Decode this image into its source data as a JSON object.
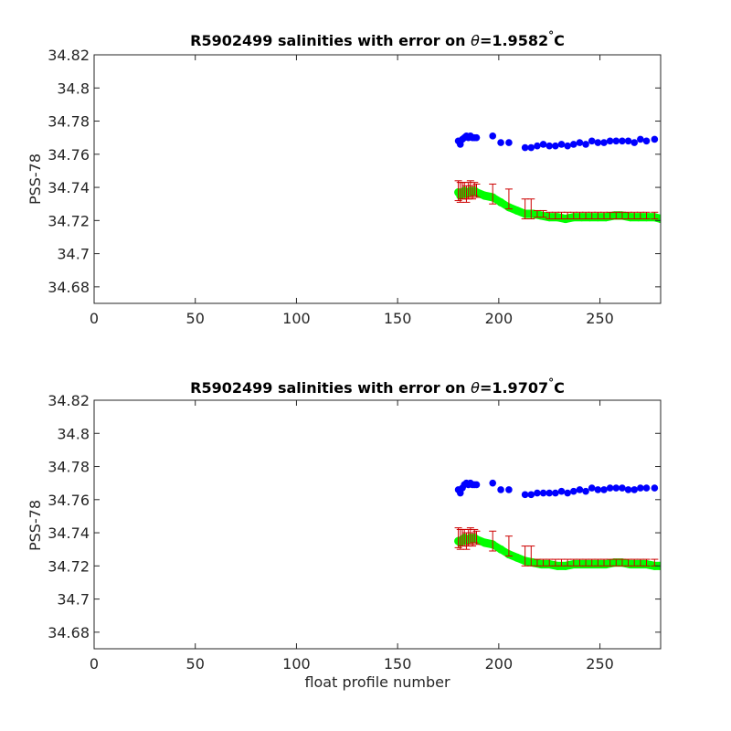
{
  "chart_data": [
    {
      "type": "scatter",
      "title": {
        "prefix": "R5902499 salinities with error on ",
        "symbol": "θ",
        "value": "=1.9582",
        "degree": "°",
        "unit": "C"
      },
      "xlabel": "",
      "ylabel": "PSS-78",
      "xlim": [
        0,
        280
      ],
      "ylim": [
        34.67,
        34.82
      ],
      "xticks": [
        "0",
        "50",
        "100",
        "150",
        "200",
        "250"
      ],
      "yticks": [
        "34.68",
        "34.7",
        "34.72",
        "34.74",
        "34.76",
        "34.78",
        "34.8",
        "34.82"
      ],
      "grid": false,
      "series": [
        {
          "kind": "markers",
          "color": "#0000ff",
          "x": [
            180,
            181,
            182,
            183,
            184,
            185,
            186,
            187,
            188,
            189,
            197,
            201,
            205,
            213,
            216,
            219,
            222,
            225,
            228,
            231,
            234,
            237,
            240,
            243,
            246,
            249,
            252,
            255,
            258,
            261,
            264,
            267,
            270,
            273,
            277
          ],
          "y": [
            34.768,
            34.766,
            34.769,
            34.77,
            34.771,
            34.77,
            34.771,
            34.77,
            34.77,
            34.77,
            34.771,
            34.767,
            34.767,
            34.764,
            34.764,
            34.765,
            34.766,
            34.765,
            34.765,
            34.766,
            34.765,
            34.766,
            34.767,
            34.766,
            34.768,
            34.767,
            34.767,
            34.768,
            34.768,
            34.768,
            34.768,
            34.767,
            34.769,
            34.768,
            34.769
          ]
        },
        {
          "kind": "band",
          "color": "#00ff00",
          "x": [
            180,
            181,
            182,
            183,
            184,
            185,
            186,
            187,
            188,
            189,
            193,
            197,
            201,
            205,
            209,
            213,
            217,
            221,
            225,
            229,
            233,
            237,
            241,
            245,
            249,
            253,
            257,
            261,
            265,
            269,
            273,
            277,
            280
          ],
          "y": [
            34.737,
            34.735,
            34.737,
            34.738,
            34.736,
            34.737,
            34.738,
            34.737,
            34.738,
            34.737,
            34.735,
            34.734,
            34.731,
            34.728,
            34.726,
            34.724,
            34.724,
            34.723,
            34.722,
            34.722,
            34.721,
            34.722,
            34.722,
            34.722,
            34.722,
            34.722,
            34.723,
            34.723,
            34.722,
            34.722,
            34.722,
            34.722,
            34.721
          ],
          "halfwidth": 0.0017
        },
        {
          "kind": "errorbars",
          "color": "#cc0000",
          "x": [
            180,
            181,
            182,
            183,
            184,
            185,
            186,
            187,
            188,
            189,
            197,
            205,
            213,
            216,
            219,
            222,
            225,
            228,
            231,
            234,
            237,
            240,
            243,
            246,
            249,
            252,
            255,
            258,
            261,
            264,
            267,
            270,
            273,
            277
          ],
          "y": [
            34.738,
            34.737,
            34.738,
            34.738,
            34.736,
            34.738,
            34.739,
            34.737,
            34.739,
            34.738,
            34.736,
            34.733,
            34.727,
            34.727,
            34.724,
            34.724,
            34.723,
            34.723,
            34.723,
            34.723,
            34.723,
            34.723,
            34.723,
            34.723,
            34.723,
            34.723,
            34.723,
            34.723,
            34.723,
            34.723,
            34.723,
            34.723,
            34.723,
            34.723
          ],
          "err": [
            0.006,
            0.006,
            0.005,
            0.005,
            0.005,
            0.005,
            0.005,
            0.004,
            0.004,
            0.004,
            0.006,
            0.006,
            0.006,
            0.006,
            0.002,
            0.002,
            0.002,
            0.002,
            0.002,
            0.002,
            0.002,
            0.002,
            0.002,
            0.002,
            0.002,
            0.002,
            0.002,
            0.002,
            0.002,
            0.002,
            0.002,
            0.002,
            0.002,
            0.002
          ]
        }
      ]
    },
    {
      "type": "scatter",
      "title": {
        "prefix": "R5902499 salinities with error on ",
        "symbol": "θ",
        "value": "=1.9707",
        "degree": "°",
        "unit": "C"
      },
      "xlabel": "float profile number",
      "ylabel": "PSS-78",
      "xlim": [
        0,
        280
      ],
      "ylim": [
        34.67,
        34.82
      ],
      "xticks": [
        "0",
        "50",
        "100",
        "150",
        "200",
        "250"
      ],
      "yticks": [
        "34.68",
        "34.7",
        "34.72",
        "34.74",
        "34.76",
        "34.78",
        "34.8",
        "34.82"
      ],
      "grid": false,
      "series": [
        {
          "kind": "markers",
          "color": "#0000ff",
          "x": [
            180,
            181,
            182,
            183,
            184,
            185,
            186,
            187,
            188,
            189,
            197,
            201,
            205,
            213,
            216,
            219,
            222,
            225,
            228,
            231,
            234,
            237,
            240,
            243,
            246,
            249,
            252,
            255,
            258,
            261,
            264,
            267,
            270,
            273,
            277
          ],
          "y": [
            34.766,
            34.764,
            34.767,
            34.769,
            34.77,
            34.769,
            34.77,
            34.769,
            34.769,
            34.769,
            34.77,
            34.766,
            34.766,
            34.763,
            34.763,
            34.764,
            34.764,
            34.764,
            34.764,
            34.765,
            34.764,
            34.765,
            34.766,
            34.765,
            34.767,
            34.766,
            34.766,
            34.767,
            34.767,
            34.767,
            34.766,
            34.766,
            34.767,
            34.767,
            34.767
          ]
        },
        {
          "kind": "band",
          "color": "#00ff00",
          "x": [
            180,
            181,
            182,
            183,
            184,
            185,
            186,
            187,
            188,
            189,
            193,
            197,
            201,
            205,
            209,
            213,
            217,
            221,
            225,
            229,
            233,
            237,
            241,
            245,
            249,
            253,
            257,
            261,
            265,
            269,
            273,
            277,
            280
          ],
          "y": [
            34.735,
            34.734,
            34.736,
            34.737,
            34.735,
            34.736,
            34.737,
            34.736,
            34.737,
            34.736,
            34.734,
            34.733,
            34.73,
            34.727,
            34.725,
            34.723,
            34.722,
            34.721,
            34.721,
            34.72,
            34.72,
            34.721,
            34.721,
            34.721,
            34.721,
            34.721,
            34.722,
            34.722,
            34.721,
            34.721,
            34.721,
            34.72,
            34.72
          ],
          "halfwidth": 0.0017
        },
        {
          "kind": "errorbars",
          "color": "#cc0000",
          "x": [
            180,
            181,
            182,
            183,
            184,
            185,
            186,
            187,
            188,
            189,
            197,
            205,
            213,
            216,
            219,
            222,
            225,
            228,
            231,
            234,
            237,
            240,
            243,
            246,
            249,
            252,
            255,
            258,
            261,
            264,
            267,
            270,
            273,
            277
          ],
          "y": [
            34.737,
            34.736,
            34.737,
            34.737,
            34.735,
            34.737,
            34.738,
            34.736,
            34.738,
            34.737,
            34.735,
            34.732,
            34.726,
            34.726,
            34.722,
            34.722,
            34.722,
            34.722,
            34.722,
            34.722,
            34.722,
            34.722,
            34.722,
            34.722,
            34.722,
            34.722,
            34.722,
            34.722,
            34.722,
            34.722,
            34.722,
            34.722,
            34.722,
            34.722
          ],
          "err": [
            0.006,
            0.006,
            0.005,
            0.005,
            0.005,
            0.005,
            0.005,
            0.004,
            0.004,
            0.004,
            0.006,
            0.006,
            0.006,
            0.006,
            0.002,
            0.002,
            0.002,
            0.002,
            0.002,
            0.002,
            0.002,
            0.002,
            0.002,
            0.002,
            0.002,
            0.002,
            0.002,
            0.002,
            0.002,
            0.002,
            0.002,
            0.002,
            0.002,
            0.002
          ]
        }
      ]
    }
  ]
}
